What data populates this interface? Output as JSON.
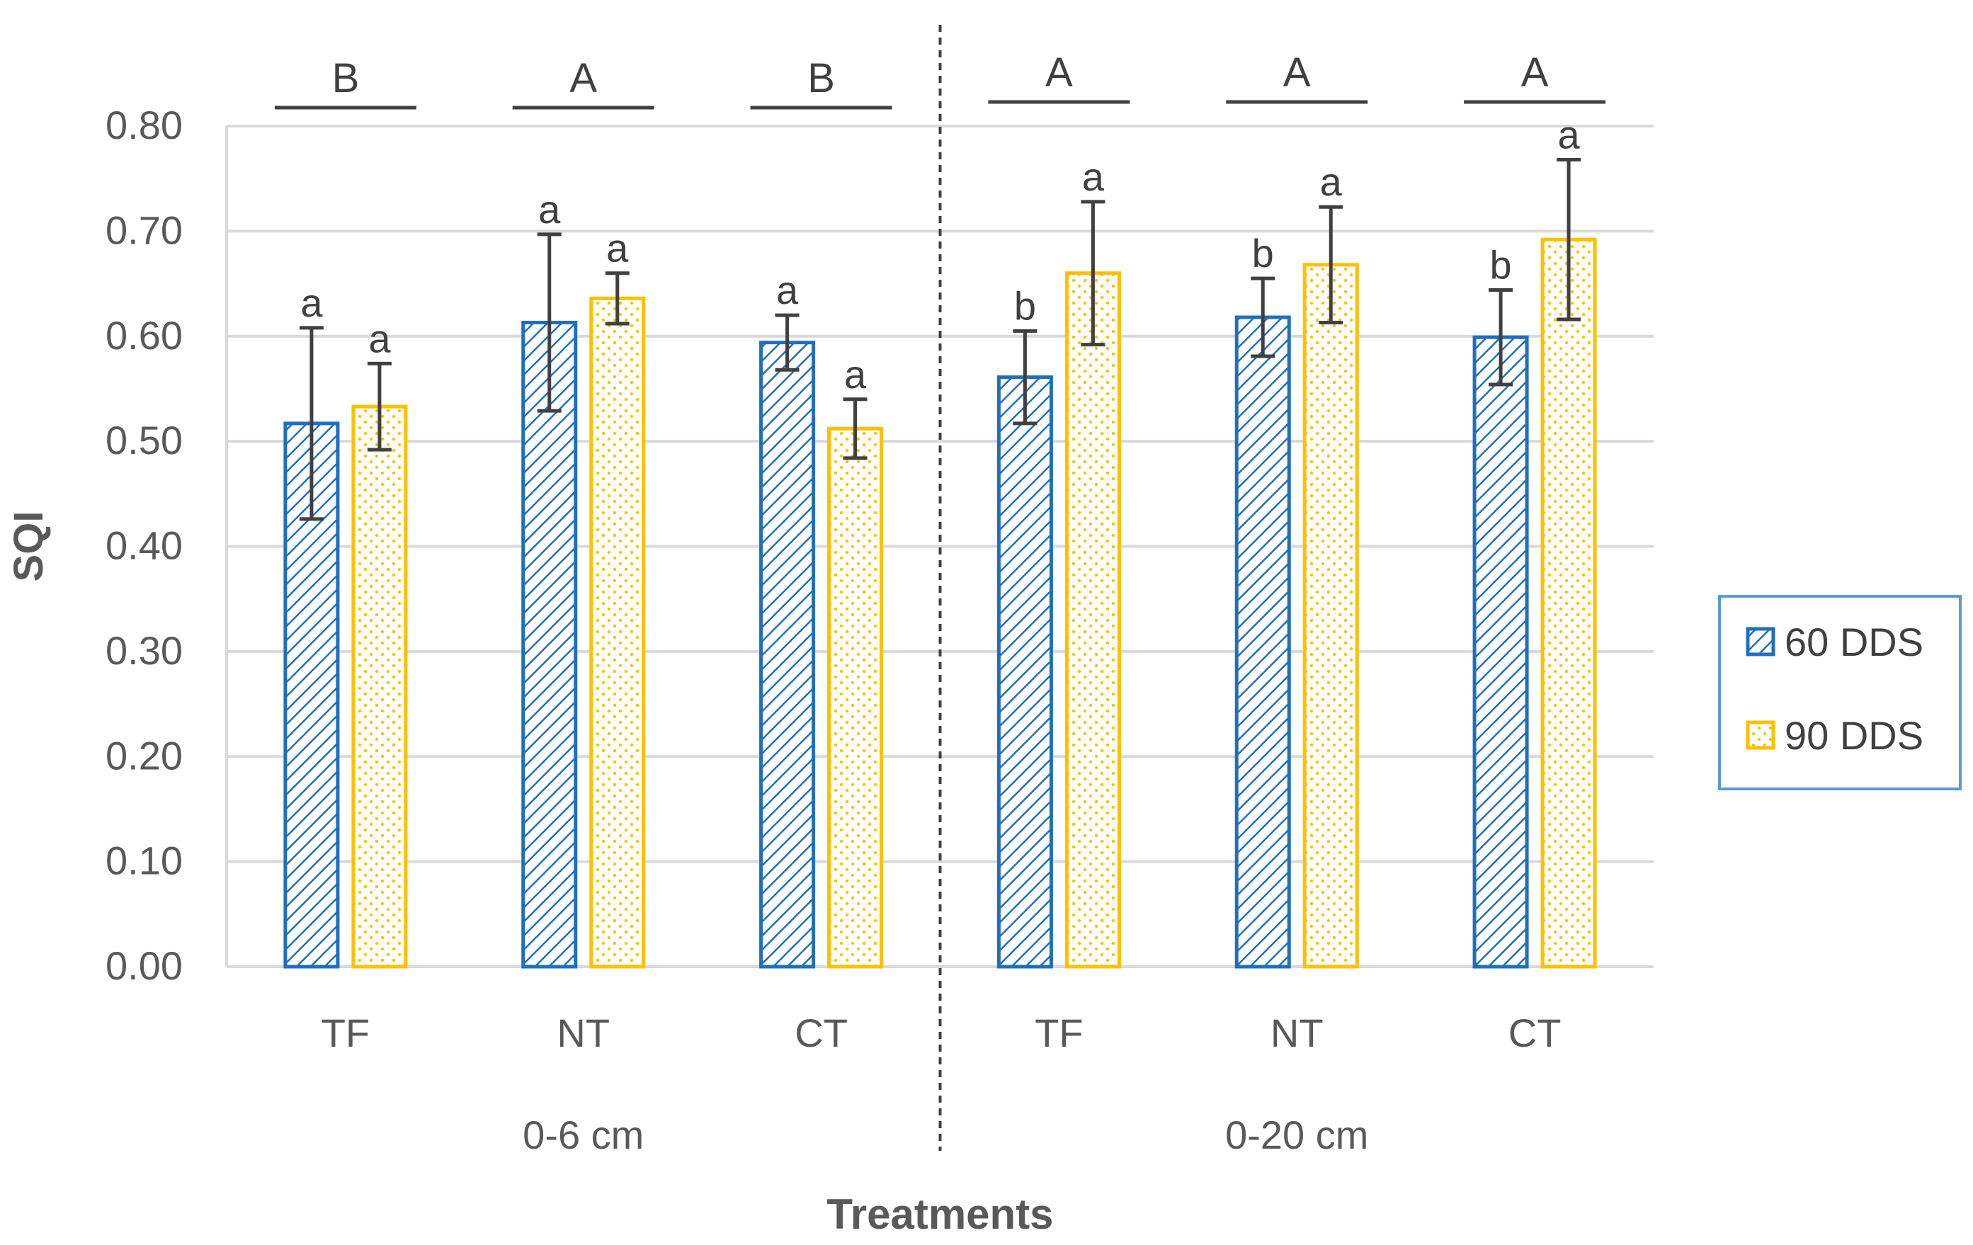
{
  "chart_data": {
    "type": "bar",
    "title": "",
    "ylabel": "SQI",
    "xlabel": "Treatments",
    "ylim": [
      0,
      0.8
    ],
    "ytick_values": [
      0,
      0.1,
      0.2,
      0.3,
      0.4,
      0.5,
      0.6,
      0.7,
      0.8
    ],
    "ytick_labels": [
      "0.00",
      "0.10",
      "0.20",
      "0.30",
      "0.40",
      "0.50",
      "0.60",
      "0.70",
      "0.80"
    ],
    "categories": [
      "TF",
      "NT",
      "CT",
      "TF",
      "NT",
      "CT"
    ],
    "groups": [
      {
        "label": "0-6 cm",
        "category_indices": [
          0,
          1,
          2
        ]
      },
      {
        "label": "0-20 cm",
        "category_indices": [
          3,
          4,
          5
        ]
      }
    ],
    "series": [
      {
        "name": "60 DDS",
        "color": "#1F6FC0",
        "pattern": "diagonal-hatch",
        "values": [
          0.517,
          0.613,
          0.594,
          0.561,
          0.618,
          0.599
        ],
        "errors": [
          0.091,
          0.084,
          0.026,
          0.044,
          0.037,
          0.045
        ],
        "letters": [
          "a",
          "a",
          "a",
          "b",
          "b",
          "b"
        ]
      },
      {
        "name": "90 DDS",
        "color": "#FFC000",
        "pattern": "dots",
        "values": [
          0.533,
          0.636,
          0.512,
          0.66,
          0.668,
          0.692
        ],
        "errors": [
          0.041,
          0.024,
          0.028,
          0.068,
          0.055,
          0.076
        ],
        "letters": [
          "a",
          "a",
          "a",
          "a",
          "a",
          "a"
        ]
      }
    ],
    "treatment_letters": [
      "B",
      "A",
      "B",
      "A",
      "A",
      "A"
    ],
    "legend": {
      "position": "right",
      "items": [
        "60 DDS",
        "90 DDS"
      ]
    },
    "grid": true
  }
}
